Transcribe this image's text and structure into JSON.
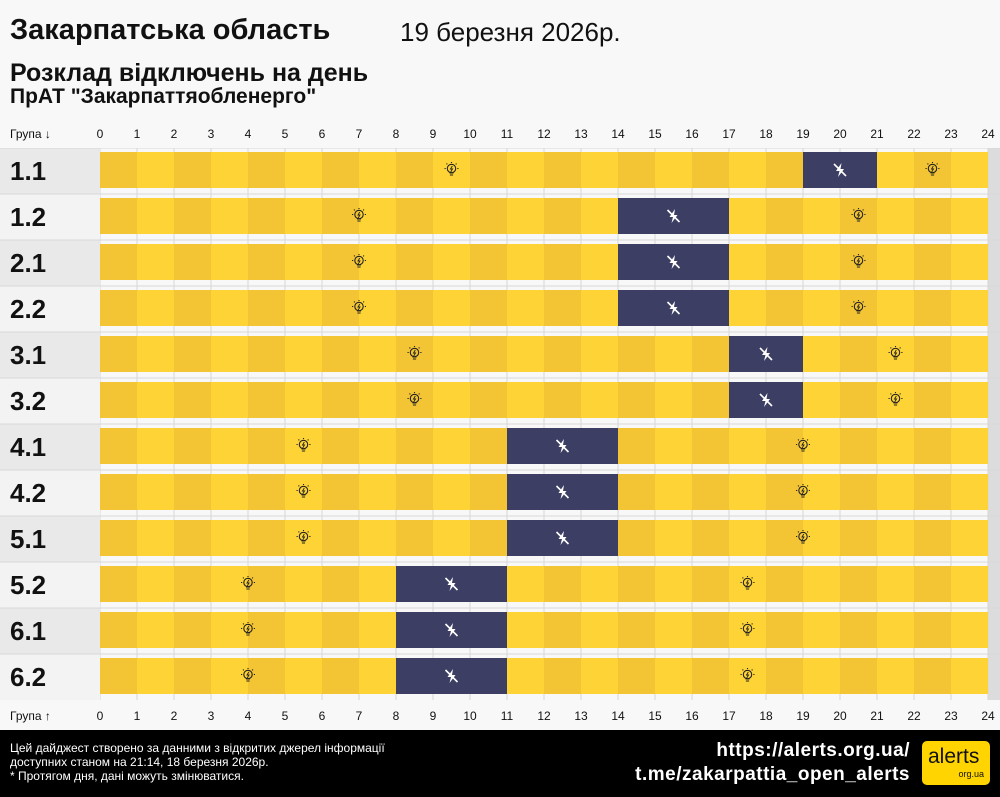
{
  "header": {
    "title": "Закарпатська область",
    "date": "19 березня 2026р.",
    "subtitle": "Розклад відключень на день",
    "company": "ПрАТ \"Закарпаттяобленерго\""
  },
  "chart_data": {
    "type": "heatmap",
    "x_header_top": "Група ↓",
    "x_header_bottom": "Група ↑",
    "hours": [
      "0",
      "1",
      "2",
      "3",
      "4",
      "5",
      "6",
      "7",
      "8",
      "9",
      "10",
      "11",
      "12",
      "13",
      "14",
      "15",
      "16",
      "17",
      "18",
      "19",
      "20",
      "21",
      "22",
      "23",
      "24"
    ],
    "xlim": [
      0,
      24
    ],
    "groups": [
      {
        "name": "1.1",
        "outages": [
          [
            19,
            21
          ]
        ]
      },
      {
        "name": "1.2",
        "outages": [
          [
            14,
            17
          ]
        ]
      },
      {
        "name": "2.1",
        "outages": [
          [
            14,
            17
          ]
        ]
      },
      {
        "name": "2.2",
        "outages": [
          [
            14,
            17
          ]
        ]
      },
      {
        "name": "3.1",
        "outages": [
          [
            17,
            19
          ]
        ]
      },
      {
        "name": "3.2",
        "outages": [
          [
            17,
            19
          ]
        ]
      },
      {
        "name": "4.1",
        "outages": [
          [
            11,
            14
          ]
        ]
      },
      {
        "name": "4.2",
        "outages": [
          [
            11,
            14
          ]
        ]
      },
      {
        "name": "5.1",
        "outages": [
          [
            11,
            14
          ]
        ]
      },
      {
        "name": "5.2",
        "outages": [
          [
            8,
            11
          ]
        ]
      },
      {
        "name": "6.1",
        "outages": [
          [
            8,
            11
          ]
        ]
      },
      {
        "name": "6.2",
        "outages": [
          [
            8,
            11
          ]
        ]
      }
    ],
    "colors": {
      "power_on_even": "#f3c433",
      "power_on_odd": "#fed335",
      "power_off": "#3c3f63"
    },
    "icons": {
      "power_on": "lightbulb-icon",
      "power_off": "no-power-icon"
    }
  },
  "footer": {
    "note_line1": "Цей дайджест створено за данними з відкритих джерел інформації",
    "note_line2": "доступних станом на 21:14, 18 березня 2026р.",
    "note_line3": "* Протягом дня, дані можуть змінюватися.",
    "link1": "https://alerts.org.ua/",
    "link2": "t.me/zakarpattia_open_alerts",
    "logo_text": "alerts",
    "logo_sub": "org.ua"
  }
}
